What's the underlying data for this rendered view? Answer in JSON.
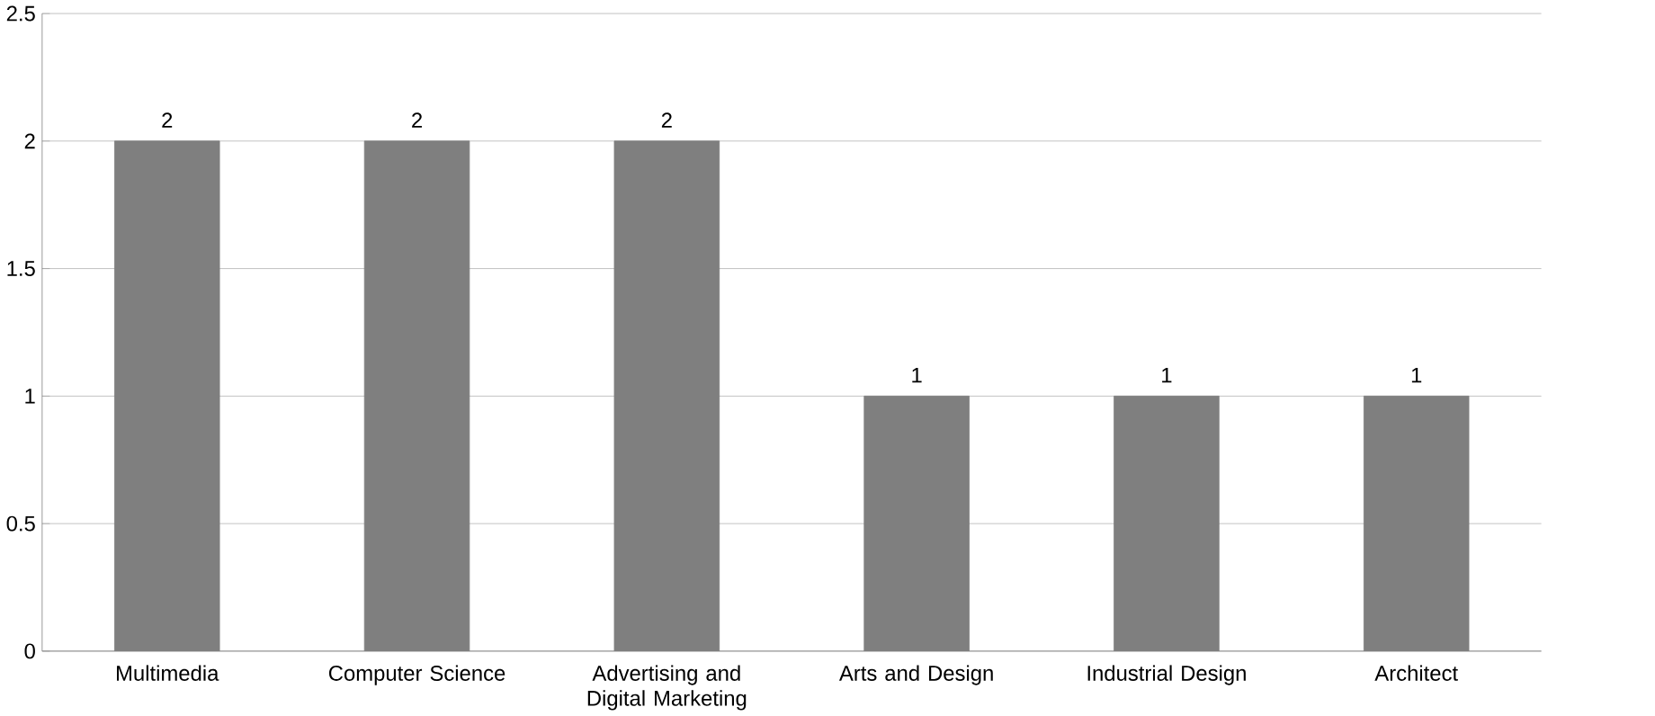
{
  "chart_data": {
    "type": "bar",
    "categories": [
      "Multimedia",
      "Computer Science",
      "Advertising and Digital Marketing",
      "Arts and Design",
      "Industrial Design",
      "Architect"
    ],
    "values": [
      2,
      2,
      2,
      1,
      1,
      1
    ],
    "color": "#7f7f7f",
    "ylim": [
      0,
      2.5
    ],
    "yticks": [
      0,
      0.5,
      1,
      1.5,
      2,
      2.5
    ],
    "grid": "y",
    "data_labels": true
  }
}
